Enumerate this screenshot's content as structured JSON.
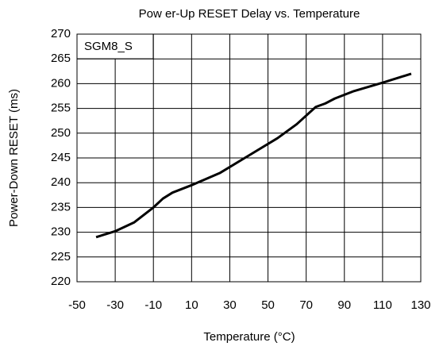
{
  "chart_data": {
    "type": "line",
    "title": "Pow er-Up RESET Delay vs. Temperature",
    "x_label": "Temperature (°C)",
    "y_label": "Power-Down RESET (ms)",
    "annotation": "SGM8_S",
    "x": [
      -40,
      -30,
      -20,
      -10,
      -5,
      0,
      10,
      25,
      40,
      55,
      65,
      75,
      80,
      85,
      95,
      110,
      125
    ],
    "series": [
      {
        "name": "SGM8_S",
        "color": "#000000",
        "values": [
          229,
          230.2,
          232,
          235,
          236.8,
          238,
          239.5,
          242,
          245.5,
          249,
          251.8,
          255.3,
          256,
          257,
          258.5,
          260.2,
          262
        ]
      }
    ],
    "xlim": [
      -50,
      130
    ],
    "xticks": [
      -50,
      -30,
      -10,
      10,
      30,
      50,
      70,
      90,
      110,
      130
    ],
    "ylim": [
      220,
      270
    ],
    "yticks": [
      220,
      225,
      230,
      235,
      240,
      245,
      250,
      255,
      260,
      265,
      270
    ],
    "grid": true
  }
}
